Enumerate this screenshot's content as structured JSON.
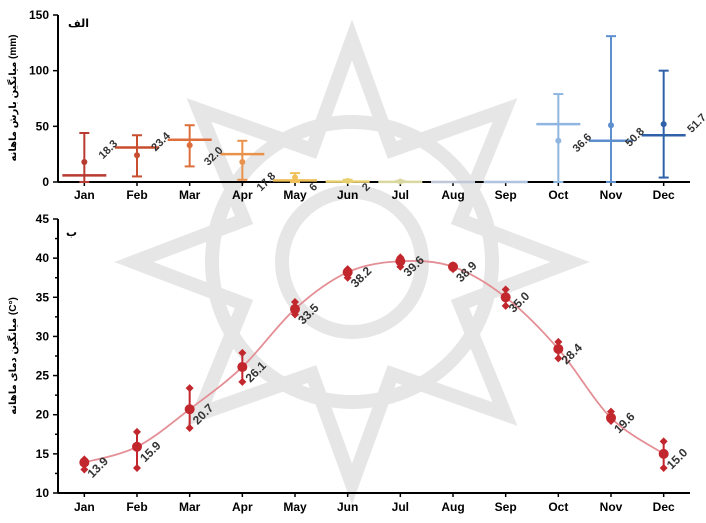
{
  "chart_data": [
    {
      "type": "bar",
      "panel_label": "الف",
      "ylabel": "میانگین بارش ماهانه (mm)",
      "categories": [
        "Jan",
        "Feb",
        "Mar",
        "Apr",
        "May",
        "Jun",
        "Jul",
        "Aug",
        "Sep",
        "Oct",
        "Nov",
        "Dec"
      ],
      "ylim": [
        0,
        150
      ],
      "yticks": [
        0,
        50,
        100,
        150
      ],
      "series": [
        {
          "mean": [
            6,
            31,
            38,
            25,
            1.5,
            0.3,
            0.1,
            0,
            0,
            52,
            37,
            42
          ],
          "point": [
            18,
            24,
            33,
            18,
            4,
            1,
            0.5,
            0,
            0,
            37,
            51,
            52
          ],
          "upper": [
            44,
            42,
            51,
            37,
            8,
            2,
            1,
            0,
            0,
            79,
            131,
            100
          ],
          "lower": [
            0,
            5,
            14,
            2,
            0,
            0,
            0,
            0,
            0,
            0,
            0,
            4
          ],
          "data_labels": [
            "",
            "18.3",
            "23.4",
            "32.0",
            "17.8",
            "6",
            "2",
            "",
            "",
            "",
            "36.6",
            "50.8"
          ],
          "colors": [
            "#b83a30",
            "#c94e30",
            "#dd6f3c",
            "#e9924c",
            "#f0c15a",
            "#e8d070",
            "#d8d8a0",
            "#c0c8d8",
            "#b0c4e0",
            "#8fb6e0",
            "#5d8fcf",
            "#2f61a8"
          ]
        }
      ],
      "extra_labels": [
        "51.7"
      ]
    },
    {
      "type": "line",
      "panel_label": "ب",
      "ylabel": "میانگین دمای ماهانه (C°)",
      "categories": [
        "Jan",
        "Feb",
        "Mar",
        "Apr",
        "May",
        "Jun",
        "Jul",
        "Aug",
        "Sep",
        "Oct",
        "Nov",
        "Dec"
      ],
      "ylim": [
        10,
        45
      ],
      "yticks": [
        10,
        15,
        20,
        25,
        30,
        35,
        40,
        45
      ],
      "series": [
        {
          "values": [
            13.9,
            15.9,
            20.7,
            26.1,
            33.5,
            38.2,
            39.6,
            38.9,
            35.0,
            28.4,
            19.6,
            15.0
          ],
          "upper": [
            14.3,
            17.8,
            23.4,
            27.9,
            34.4,
            38.6,
            40.1,
            39.1,
            36.0,
            29.3,
            20.4,
            16.6
          ],
          "lower": [
            13.0,
            13.2,
            18.3,
            24.2,
            32.8,
            37.5,
            38.9,
            38.6,
            33.9,
            27.2,
            19.2,
            13.2
          ],
          "data_labels": [
            "13.9",
            "15.9",
            "20.7",
            "26.1",
            "33.5",
            "38.2",
            "39.6",
            "38.9",
            "35.0",
            "28.4",
            "19.6",
            "15.0"
          ],
          "color": "#c1272d",
          "line_color": "#e48e95"
        }
      ]
    }
  ]
}
